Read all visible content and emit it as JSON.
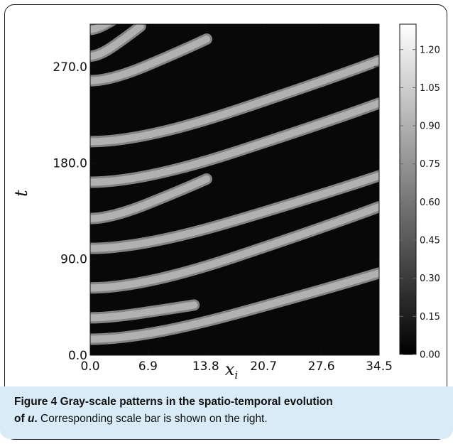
{
  "chart_data": {
    "type": "heatmap",
    "colormap": "gray",
    "xlabel": "x_i",
    "ylabel": "t",
    "x_ticks": [
      "0.0",
      "6.9",
      "13.8",
      "20.7",
      "27.6",
      "34.5"
    ],
    "x_tick_values": [
      0.0,
      6.9,
      13.8,
      20.7,
      27.6,
      34.5
    ],
    "xlim": [
      0.0,
      34.5
    ],
    "y_ticks": [
      "0.0",
      "90.0",
      "180.0",
      "270.0"
    ],
    "y_tick_values": [
      0.0,
      90.0,
      180.0,
      270.0
    ],
    "ylim": [
      0.0,
      310.0
    ],
    "colorbar_ticks": [
      "0.00",
      "0.15",
      "0.30",
      "0.45",
      "0.60",
      "0.75",
      "0.90",
      "1.05",
      "1.20"
    ],
    "colorbar_values": [
      0.0,
      0.15,
      0.3,
      0.45,
      0.6,
      0.75,
      0.9,
      1.05,
      1.2
    ],
    "colorbar_range": [
      0.0,
      1.3
    ],
    "background_value": 0.03,
    "band_value": 0.9,
    "bands": [
      {
        "t0": 15,
        "x_end": 34.5,
        "t_end": 77
      },
      {
        "t0": 35,
        "x_end": 12.4,
        "t_end": 47
      },
      {
        "t0": 63,
        "x_end": 34.5,
        "t_end": 139
      },
      {
        "t0": 100,
        "x_end": 34.5,
        "t_end": 168
      },
      {
        "t0": 128,
        "x_end": 13.9,
        "t_end": 165
      },
      {
        "t0": 162,
        "x_end": 34.5,
        "t_end": 236
      },
      {
        "t0": 200,
        "x_end": 34.5,
        "t_end": 276
      },
      {
        "t0": 257,
        "x_end": 13.9,
        "t_end": 296
      },
      {
        "t0": 280,
        "x_end": 6.0,
        "t_end": 308
      },
      {
        "t0": 305,
        "x_end": 4.0,
        "t_end": 320
      }
    ]
  },
  "caption": {
    "figure_label": "Figure 4",
    "title_text": " Gray-scale patterns in the spatio-temporal evolution",
    "line2_prefix": "of ",
    "variable": "u",
    "line2_period": ".",
    "note": " Corresponding scale bar is shown on the right."
  }
}
